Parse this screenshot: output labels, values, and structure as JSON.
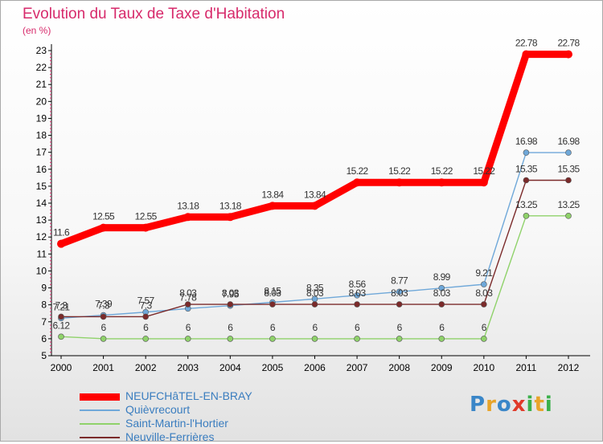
{
  "title": "Evolution du Taux de Taxe d'Habitation",
  "subtitle": "(en %)",
  "logo": {
    "text": "Proxiti",
    "colors": [
      "#3a86c8",
      "#e8a42a",
      "#3a86c8",
      "#e03a2a",
      "#3ab04a",
      "#e8a42a",
      "#3ab04a"
    ]
  },
  "chart_data": {
    "type": "line",
    "x": [
      "2000",
      "2001",
      "2002",
      "2003",
      "2004",
      "2005",
      "2006",
      "2007",
      "2008",
      "2009",
      "2010",
      "2011",
      "2012"
    ],
    "ylim": [
      5,
      23
    ],
    "yticks": [
      "5",
      "6",
      "7",
      "8",
      "9",
      "10",
      "11",
      "12",
      "13",
      "14",
      "15",
      "16",
      "17",
      "18",
      "19",
      "20",
      "21",
      "22",
      "23"
    ],
    "grid": false,
    "legend_position": "bottom-left",
    "series": [
      {
        "name": "NEUFCHâTEL-EN-BRAY",
        "color": "#ff0000",
        "values": [
          11.6,
          12.55,
          12.55,
          13.18,
          13.18,
          13.84,
          13.84,
          15.22,
          15.22,
          15.22,
          15.22,
          22.78,
          22.78
        ],
        "labels": [
          "11.6",
          "12.55",
          "12.55",
          "13.18",
          "13.18",
          "13.84",
          "13.84",
          "15.22",
          "15.22",
          "15.22",
          "15.22",
          "22.78",
          "22.78"
        ]
      },
      {
        "name": "Quièvrecourt",
        "color": "#6fa8d9",
        "values": [
          7.21,
          7.39,
          7.57,
          7.78,
          7.95,
          8.15,
          8.35,
          8.56,
          8.77,
          8.99,
          9.21,
          16.98,
          16.98
        ],
        "labels": [
          "7.21",
          "7.39",
          "7.57",
          "7.78",
          "7.95",
          "8.15",
          "8.35",
          "8.56",
          "8.77",
          "8.99",
          "9.21",
          "16.98",
          "16.98"
        ]
      },
      {
        "name": "Saint-Martin-l'Hortier",
        "color": "#8fd26a",
        "values": [
          6.12,
          6,
          6,
          6,
          6,
          6,
          6,
          6,
          6,
          6,
          6,
          13.25,
          13.25
        ],
        "labels": [
          "6.12",
          "6",
          "6",
          "6",
          "6",
          "6",
          "6",
          "6",
          "6",
          "6",
          "6",
          "13.25",
          "13.25"
        ]
      },
      {
        "name": "Neuville-Ferrières",
        "color": "#7b2a2a",
        "values": [
          7.3,
          7.3,
          7.3,
          8.03,
          8.03,
          8.03,
          8.03,
          8.03,
          8.03,
          8.03,
          8.03,
          15.35,
          15.35
        ],
        "labels": [
          "7.3",
          "7.3",
          "7.3",
          "8.03",
          "8.03",
          "8.03",
          "8.03",
          "8.03",
          "8.03",
          "8.03",
          "8.03",
          "15.35",
          "15.35"
        ]
      }
    ]
  }
}
